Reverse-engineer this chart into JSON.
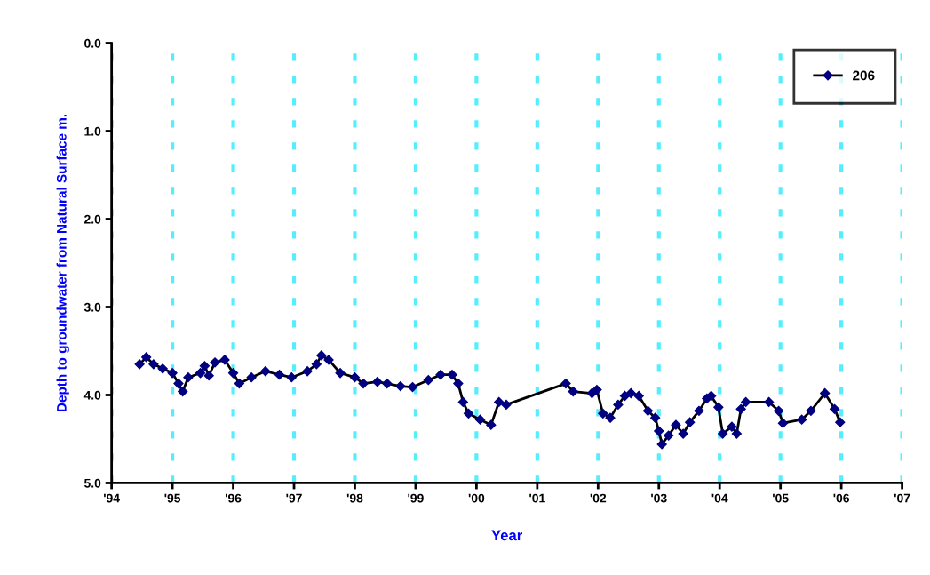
{
  "chart_data": {
    "type": "line",
    "xlabel": "Year",
    "ylabel": "Depth to groundwater from Natural Surface m.",
    "xlim": [
      1994,
      2007
    ],
    "xticks": [
      {
        "value": 1994,
        "label": "'94"
      },
      {
        "value": 1995,
        "label": "'95"
      },
      {
        "value": 1996,
        "label": "'96"
      },
      {
        "value": 1997,
        "label": "'97"
      },
      {
        "value": 1998,
        "label": "'98"
      },
      {
        "value": 1999,
        "label": "'99"
      },
      {
        "value": 2000,
        "label": "'00"
      },
      {
        "value": 2001,
        "label": "'01"
      },
      {
        "value": 2002,
        "label": "'02"
      },
      {
        "value": 2003,
        "label": "'03"
      },
      {
        "value": 2004,
        "label": "'04"
      },
      {
        "value": 2005,
        "label": "'05"
      },
      {
        "value": 2006,
        "label": "'06"
      },
      {
        "value": 2007,
        "label": "'07"
      }
    ],
    "ylim": [
      5,
      0
    ],
    "yticks": [
      {
        "value": 0,
        "label": "0.0"
      },
      {
        "value": 1,
        "label": "1.0"
      },
      {
        "value": 2,
        "label": "2.0"
      },
      {
        "value": 3,
        "label": "3.0"
      },
      {
        "value": 4,
        "label": "4.0"
      },
      {
        "value": 5,
        "label": "5.0"
      }
    ],
    "grid": "x",
    "legend": "top right",
    "marker": "diamond",
    "line_style": "solid",
    "series": [
      {
        "name": "206",
        "color": "#000080",
        "x": [
          1994.46,
          1994.57,
          1994.69,
          1994.84,
          1995.0,
          1995.1,
          1995.17,
          1995.26,
          1995.46,
          1995.53,
          1995.6,
          1995.7,
          1995.86,
          1996.0,
          1996.1,
          1996.3,
          1996.53,
          1996.76,
          1996.96,
          1997.22,
          1997.37,
          1997.45,
          1997.57,
          1997.76,
          1998.0,
          1998.14,
          1998.37,
          1998.53,
          1998.75,
          1998.95,
          1999.21,
          1999.41,
          1999.6,
          1999.7,
          1999.78,
          1999.87,
          2000.06,
          2000.24,
          2000.37,
          2000.49,
          2001.47,
          2001.59,
          2001.9,
          2001.98,
          2002.08,
          2002.2,
          2002.33,
          2002.44,
          2002.54,
          2002.67,
          2002.82,
          2002.94,
          2003.0,
          2003.05,
          2003.16,
          2003.28,
          2003.4,
          2003.51,
          2003.66,
          2003.79,
          2003.86,
          2003.98,
          2004.05,
          2004.2,
          2004.28,
          2004.35,
          2004.43,
          2004.81,
          2004.97,
          2005.04,
          2005.35,
          2005.5,
          2005.73,
          2005.89,
          2005.98
        ],
        "values": [
          3.65,
          3.57,
          3.65,
          3.7,
          3.75,
          3.87,
          3.96,
          3.8,
          3.75,
          3.67,
          3.78,
          3.63,
          3.6,
          3.75,
          3.87,
          3.8,
          3.73,
          3.77,
          3.8,
          3.73,
          3.65,
          3.55,
          3.6,
          3.75,
          3.8,
          3.87,
          3.85,
          3.87,
          3.9,
          3.91,
          3.83,
          3.77,
          3.77,
          3.87,
          4.08,
          4.21,
          4.28,
          4.34,
          4.08,
          4.11,
          3.87,
          3.96,
          3.98,
          3.94,
          4.21,
          4.26,
          4.11,
          4.01,
          3.98,
          4.01,
          4.18,
          4.26,
          4.41,
          4.56,
          4.46,
          4.34,
          4.44,
          4.31,
          4.18,
          4.04,
          4.01,
          4.14,
          4.44,
          4.36,
          4.44,
          4.16,
          4.08,
          4.08,
          4.18,
          4.32,
          4.28,
          4.18,
          3.98,
          4.16,
          4.31
        ]
      }
    ]
  }
}
